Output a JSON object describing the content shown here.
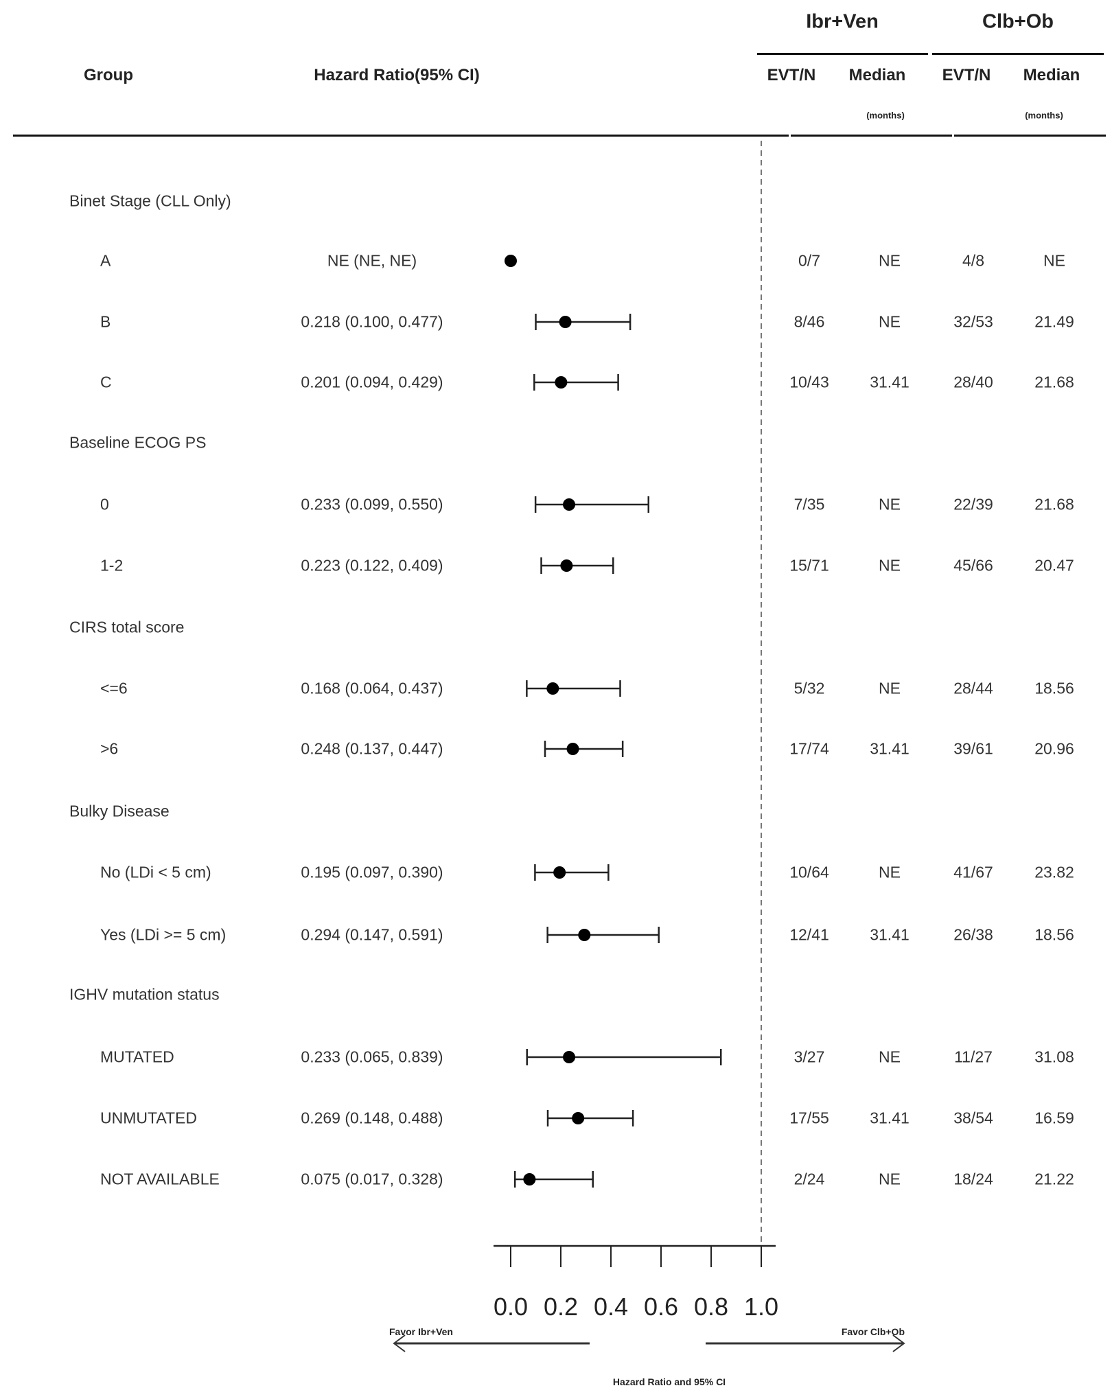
{
  "header": {
    "group": "Group",
    "hazard_ratio": "Hazard Ratio(95% CI)",
    "arm1": "Ibr+Ven",
    "arm2": "Clb+Ob",
    "evt_n": "EVT/N",
    "median": "Median",
    "months": "(months)"
  },
  "chart_data": {
    "type": "forest",
    "xlabel": "Hazard Ratio and 95% CI",
    "xlim": [
      0.0,
      1.0
    ],
    "xticks": [
      "0.0",
      "0.2",
      "0.4",
      "0.6",
      "0.8",
      "1.0"
    ],
    "reference_line": 1.0,
    "favor_left": "Favor Ibr+Ven",
    "favor_right": "Favor Clb+Ob",
    "rows": [
      {
        "type": "group",
        "label": "Binet Stage (CLL Only)"
      },
      {
        "type": "item",
        "label": "A",
        "hr_text": "NE (NE, NE)",
        "hr": 0.0,
        "lo": null,
        "hi": null,
        "evt1": "0/7",
        "med1": "NE",
        "evt2": "4/8",
        "med2": "NE"
      },
      {
        "type": "item",
        "label": "B",
        "hr_text": "0.218 (0.100, 0.477)",
        "hr": 0.218,
        "lo": 0.1,
        "hi": 0.477,
        "evt1": "8/46",
        "med1": "NE",
        "evt2": "32/53",
        "med2": "21.49"
      },
      {
        "type": "item",
        "label": "C",
        "hr_text": "0.201 (0.094, 0.429)",
        "hr": 0.201,
        "lo": 0.094,
        "hi": 0.429,
        "evt1": "10/43",
        "med1": "31.41",
        "evt2": "28/40",
        "med2": "21.68"
      },
      {
        "type": "group",
        "label": "Baseline ECOG PS"
      },
      {
        "type": "item",
        "label": "0",
        "hr_text": "0.233 (0.099, 0.550)",
        "hr": 0.233,
        "lo": 0.099,
        "hi": 0.55,
        "evt1": "7/35",
        "med1": "NE",
        "evt2": "22/39",
        "med2": "21.68"
      },
      {
        "type": "item",
        "label": "1-2",
        "hr_text": "0.223 (0.122, 0.409)",
        "hr": 0.223,
        "lo": 0.122,
        "hi": 0.409,
        "evt1": "15/71",
        "med1": "NE",
        "evt2": "45/66",
        "med2": "20.47"
      },
      {
        "type": "group",
        "label": "CIRS total score"
      },
      {
        "type": "item",
        "label": "<=6",
        "hr_text": "0.168 (0.064, 0.437)",
        "hr": 0.168,
        "lo": 0.064,
        "hi": 0.437,
        "evt1": "5/32",
        "med1": "NE",
        "evt2": "28/44",
        "med2": "18.56"
      },
      {
        "type": "item",
        "label": ">6",
        "hr_text": "0.248 (0.137, 0.447)",
        "hr": 0.248,
        "lo": 0.137,
        "hi": 0.447,
        "evt1": "17/74",
        "med1": "31.41",
        "evt2": "39/61",
        "med2": "20.96"
      },
      {
        "type": "group",
        "label": "Bulky Disease"
      },
      {
        "type": "item",
        "label": "No (LDi < 5 cm)",
        "hr_text": "0.195 (0.097, 0.390)",
        "hr": 0.195,
        "lo": 0.097,
        "hi": 0.39,
        "evt1": "10/64",
        "med1": "NE",
        "evt2": "41/67",
        "med2": "23.82"
      },
      {
        "type": "item",
        "label": "Yes (LDi >= 5 cm)",
        "hr_text": "0.294 (0.147, 0.591)",
        "hr": 0.294,
        "lo": 0.147,
        "hi": 0.591,
        "evt1": "12/41",
        "med1": "31.41",
        "evt2": "26/38",
        "med2": "18.56"
      },
      {
        "type": "group",
        "label": "IGHV mutation status"
      },
      {
        "type": "item",
        "label": "MUTATED",
        "hr_text": "0.233 (0.065, 0.839)",
        "hr": 0.233,
        "lo": 0.065,
        "hi": 0.839,
        "evt1": "3/27",
        "med1": "NE",
        "evt2": "11/27",
        "med2": "31.08"
      },
      {
        "type": "item",
        "label": "UNMUTATED",
        "hr_text": "0.269 (0.148, 0.488)",
        "hr": 0.269,
        "lo": 0.148,
        "hi": 0.488,
        "evt1": "17/55",
        "med1": "31.41",
        "evt2": "38/54",
        "med2": "16.59"
      },
      {
        "type": "item",
        "label": "NOT AVAILABLE",
        "hr_text": "0.075 (0.017, 0.328)",
        "hr": 0.075,
        "lo": 0.017,
        "hi": 0.328,
        "evt1": "2/24",
        "med1": "NE",
        "evt2": "18/24",
        "med2": "21.22"
      }
    ]
  }
}
